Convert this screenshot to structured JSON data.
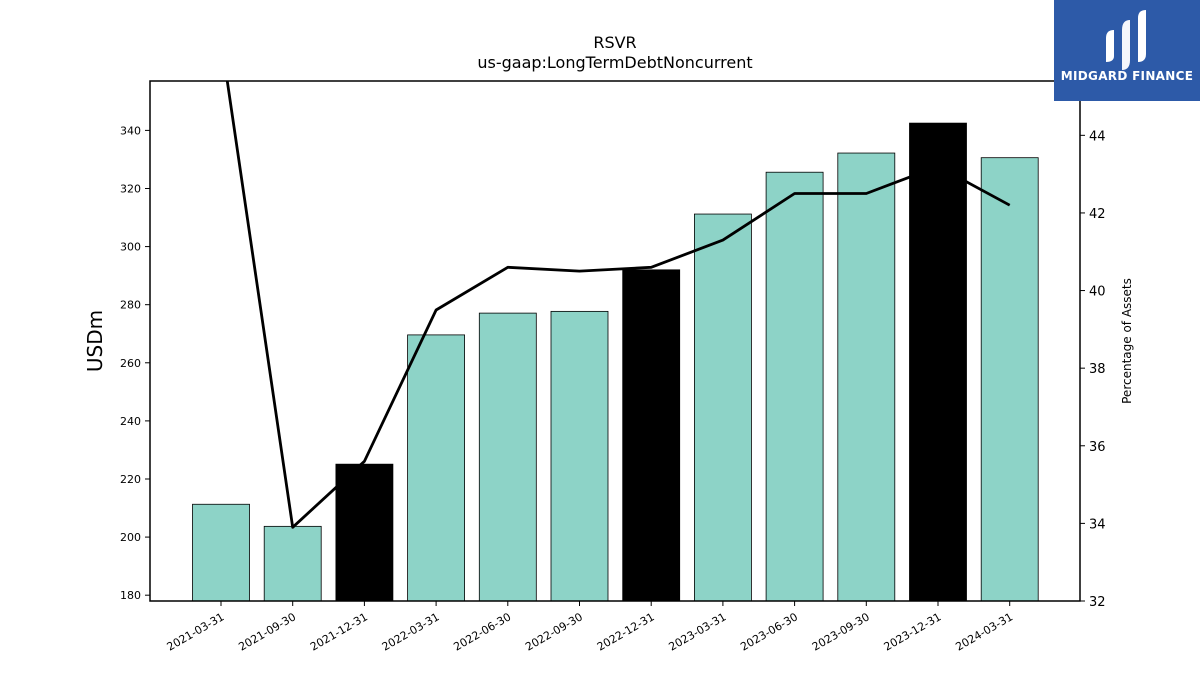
{
  "chart_data": {
    "type": "bar",
    "title": "RSVR",
    "subtitle": "us-gaap:LongTermDebtNoncurrent",
    "ylabel": "USDm",
    "y2label": "Percentage of Assets",
    "ylim": [
      178,
      357
    ],
    "y2lim": [
      32,
      45.4
    ],
    "yticks": [
      180,
      200,
      220,
      240,
      260,
      280,
      300,
      320,
      340
    ],
    "y2ticks": [
      32,
      34,
      36,
      38,
      40,
      42,
      44
    ],
    "categories": [
      "2021-03-31",
      "2021-09-30",
      "2021-12-31",
      "2022-03-31",
      "2022-06-30",
      "2022-09-30",
      "2022-12-31",
      "2023-03-31",
      "2023-06-30",
      "2023-09-30",
      "2023-12-31",
      "2024-03-31"
    ],
    "values": [
      211.3,
      203.7,
      225.1,
      269.6,
      277.1,
      277.7,
      292.0,
      311.2,
      325.6,
      332.2,
      342.5,
      330.6
    ],
    "bar_colors": [
      "#8dd3c7",
      "#8dd3c7",
      "#000000",
      "#8dd3c7",
      "#8dd3c7",
      "#8dd3c7",
      "#000000",
      "#8dd3c7",
      "#8dd3c7",
      "#8dd3c7",
      "#000000",
      "#8dd3c7"
    ],
    "line_series": {
      "name": "",
      "values": [
        46.5,
        33.9,
        35.6,
        39.5,
        40.6,
        40.5,
        40.6,
        41.3,
        42.5,
        42.5,
        43.2,
        42.2
      ],
      "color": "#000000"
    },
    "grid": false
  },
  "logo": {
    "text": "MIDGARD FINANCE",
    "background": "#2d5aa8"
  }
}
